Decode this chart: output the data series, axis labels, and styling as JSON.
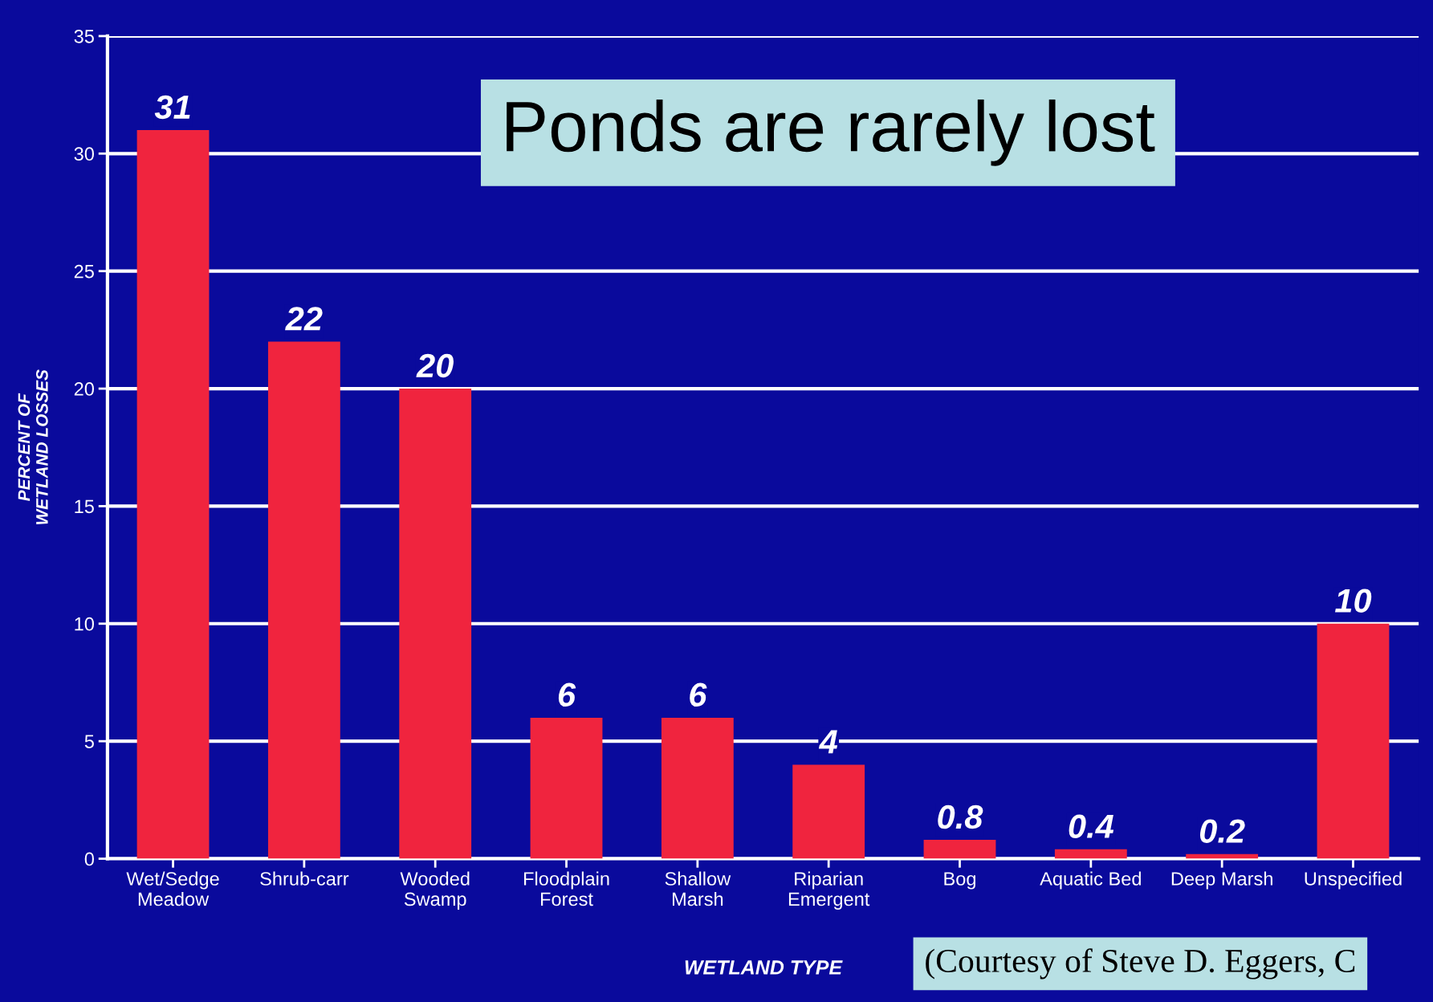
{
  "chart_data": {
    "type": "bar",
    "title": "Ponds are rarely lost",
    "categories": [
      "Wet/Sedge\nMeadow",
      "Shrub-carr",
      "Wooded\nSwamp",
      "Floodplain\nForest",
      "Shallow\nMarsh",
      "Riparian\nEmergent",
      "Bog",
      "Aquatic Bed",
      "Deep Marsh",
      "Unspecified"
    ],
    "values": [
      31,
      22,
      20,
      6,
      6,
      4,
      0.8,
      0.4,
      0.2,
      10
    ],
    "value_labels": [
      "31",
      "22",
      "20",
      "6",
      "6",
      "4",
      "0.8",
      "0.4",
      "0.2",
      "10"
    ],
    "color": "#f0243e",
    "ylim": [
      0,
      35
    ],
    "yticks": [
      0,
      5,
      10,
      15,
      20,
      25,
      30,
      35
    ],
    "grid": "y",
    "xlabel": "WETLAND TYPE",
    "ylabel": "PERCENT OF\nWETLAND LOSSES",
    "annotations": [
      "(Courtesy of Steve D. Eggers, C"
    ]
  }
}
